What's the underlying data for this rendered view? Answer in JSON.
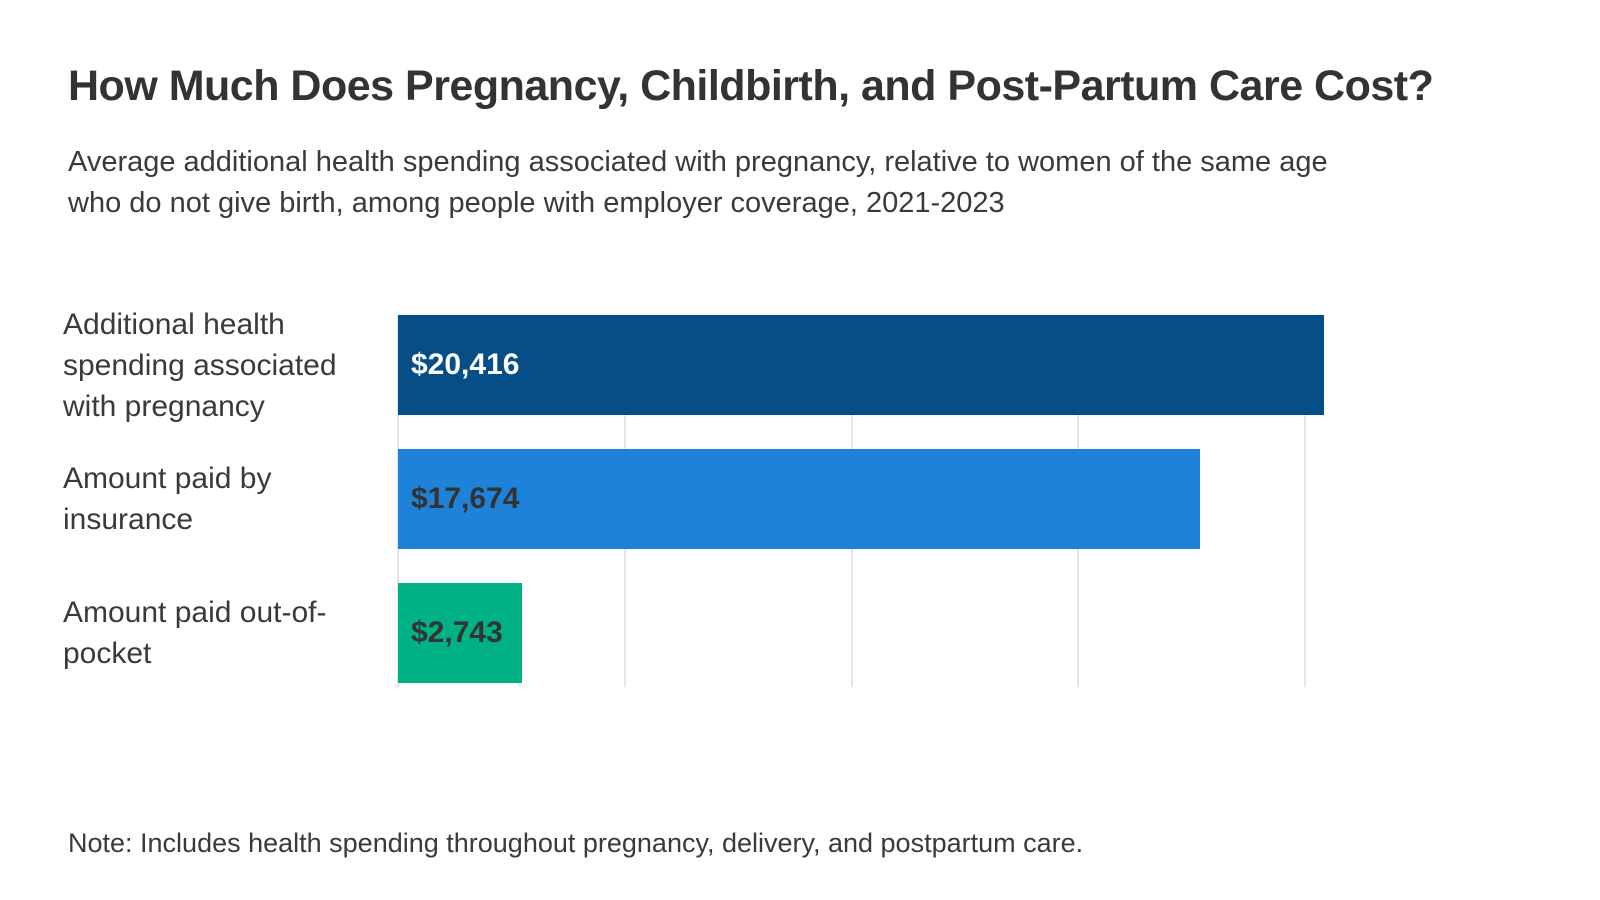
{
  "header": {
    "title": "How Much Does Pregnancy, Childbirth, and Post-Partum Care Cost?",
    "subtitle_line1": "Average additional health spending associated with pregnancy, relative to women of the same age",
    "subtitle_line2": "who do not give birth, among people with employer coverage, 2021-2023"
  },
  "chart_data": {
    "type": "bar",
    "orientation": "horizontal",
    "title": "How Much Does Pregnancy, Childbirth, and Post-Partum Care Cost?",
    "categories": [
      "Additional health spending associated with pregnancy",
      "Amount paid by insurance",
      "Amount paid out-of-pocket"
    ],
    "values": [
      20416,
      17674,
      2743
    ],
    "value_labels": [
      "$20,416",
      "$17,674",
      "$2,743"
    ],
    "bar_colors": [
      "#054e88",
      "#1e83d8",
      "#00b185"
    ],
    "value_label_colors": [
      "#ffffff",
      "#333333",
      "#333333"
    ],
    "xlim": [
      0,
      20416
    ],
    "gridlines_at": [
      0,
      5000,
      10000,
      15000,
      20000
    ],
    "grid": true,
    "legend_position": "none",
    "axis_tick_labels_shown": false
  },
  "note": {
    "text": "Note: Includes health spending throughout pregnancy, delivery, and postpartum care."
  },
  "colors": {
    "background": "#ffffff",
    "text": "#3a3a3a",
    "gridline": "#e6e6e6"
  }
}
